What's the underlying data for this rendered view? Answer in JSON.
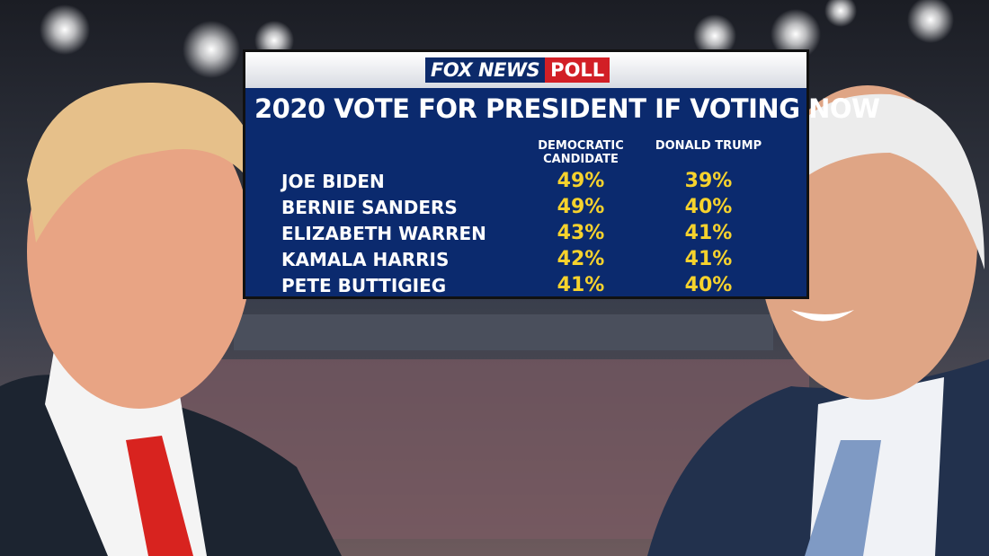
{
  "logo": {
    "brand": "FOX NEWS",
    "badge": "POLL"
  },
  "table": {
    "title": "2020 VOTE FOR PRESIDENT IF VOTING NOW",
    "columns": [
      "DEMOCRATIC CANDIDATE",
      "DONALD TRUMP"
    ],
    "rows": [
      [
        "JOE BIDEN",
        "49%",
        "39%"
      ],
      [
        "BERNIE SANDERS",
        "49%",
        "40%"
      ],
      [
        "ELIZABETH WARREN",
        "43%",
        "41%"
      ],
      [
        "KAMALA HARRIS",
        "42%",
        "41%"
      ],
      [
        "PETE BUTTIGIEG",
        "41%",
        "40%"
      ]
    ]
  }
}
